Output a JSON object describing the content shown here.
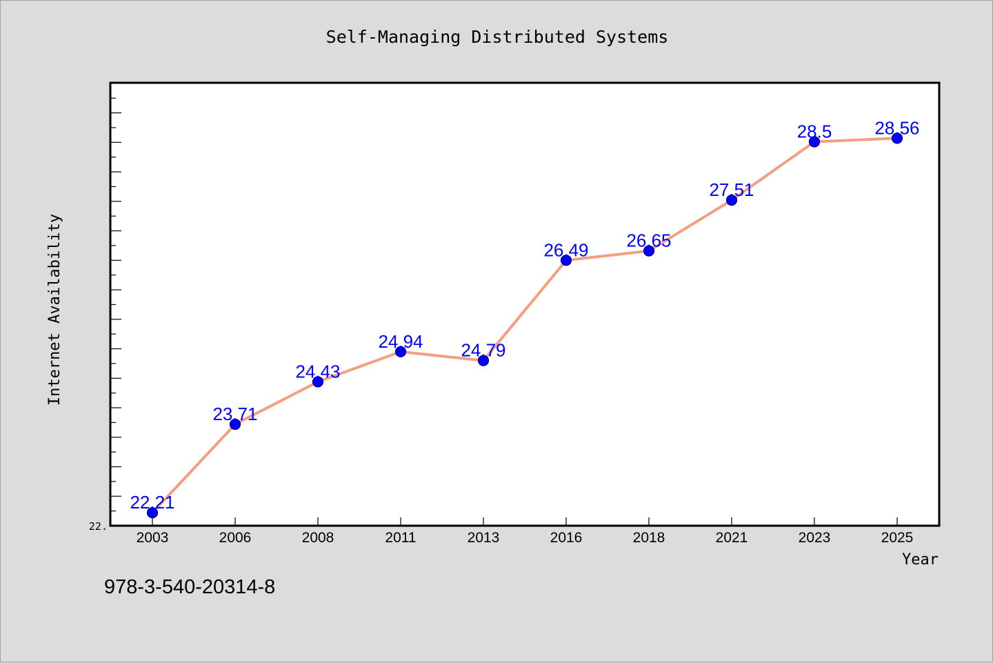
{
  "caption": "978-3-540-20314-8",
  "colors": {
    "background": "#dcdcdc",
    "plot_background": "#ffffff",
    "line": "#f4a07f",
    "marker": "#0000ff",
    "data_label": "#0000ff"
  },
  "chart_data": {
    "type": "line",
    "title": "Self-Managing Distributed Systems",
    "xlabel": "Year",
    "ylabel": "Internet Availability",
    "categories": [
      "2003",
      "2006",
      "2008",
      "2011",
      "2013",
      "2016",
      "2018",
      "2021",
      "2023",
      "2025"
    ],
    "values": [
      22.21,
      23.71,
      24.43,
      24.94,
      24.79,
      26.49,
      26.65,
      27.51,
      28.5,
      28.56
    ],
    "data_labels": [
      "22.21",
      "23.71",
      "24.43",
      "24.94",
      "24.79",
      "26.49",
      "26.65",
      "27.51",
      "28.5",
      "28.56"
    ],
    "y_tick_labels": [
      "22."
    ],
    "ylim": [
      21.99,
      29.5
    ],
    "grid": false,
    "legend": "none"
  }
}
